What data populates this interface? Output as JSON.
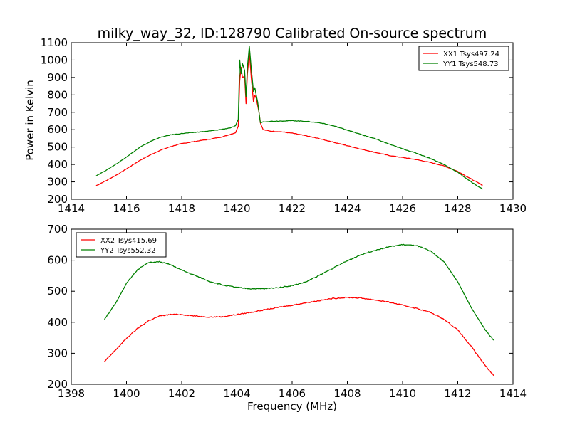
{
  "chart_data": [
    {
      "type": "line",
      "title": "milky_way_32, ID:128790 Calibrated On-source spectrum",
      "xlabel": "",
      "ylabel": "Power in Kelvin",
      "xlim": [
        1414,
        1430
      ],
      "ylim": [
        200,
        1100
      ],
      "x_ticks": [
        "1414",
        "1416",
        "1418",
        "1420",
        "1422",
        "1424",
        "1426",
        "1428",
        "1430"
      ],
      "y_ticks": [
        "200",
        "300",
        "400",
        "500",
        "600",
        "700",
        "800",
        "900",
        "1000",
        "1100"
      ],
      "grid": false,
      "legend_position": "top-right",
      "series": [
        {
          "name": "XX1 Tsys497.24",
          "color": "#ff0000",
          "points": [
            [
              1414.9,
              278
            ],
            [
              1415.3,
              310
            ],
            [
              1415.7,
              345
            ],
            [
              1416.1,
              385
            ],
            [
              1416.5,
              425
            ],
            [
              1416.9,
              458
            ],
            [
              1417.2,
              480
            ],
            [
              1417.6,
              503
            ],
            [
              1418.0,
              520
            ],
            [
              1418.5,
              533
            ],
            [
              1419.0,
              545
            ],
            [
              1419.5,
              560
            ],
            [
              1419.8,
              575
            ],
            [
              1419.95,
              583
            ],
            [
              1420.05,
              620
            ],
            [
              1420.1,
              880
            ],
            [
              1420.15,
              960
            ],
            [
              1420.2,
              900
            ],
            [
              1420.28,
              910
            ],
            [
              1420.33,
              750
            ],
            [
              1420.38,
              920
            ],
            [
              1420.45,
              1040
            ],
            [
              1420.52,
              900
            ],
            [
              1420.6,
              760
            ],
            [
              1420.65,
              800
            ],
            [
              1420.7,
              780
            ],
            [
              1420.75,
              740
            ],
            [
              1420.8,
              700
            ],
            [
              1420.85,
              640
            ],
            [
              1420.95,
              600
            ],
            [
              1421.2,
              592
            ],
            [
              1421.6,
              588
            ],
            [
              1422.0,
              580
            ],
            [
              1422.5,
              565
            ],
            [
              1423.0,
              548
            ],
            [
              1423.5,
              528
            ],
            [
              1424.0,
              508
            ],
            [
              1424.5,
              488
            ],
            [
              1425.0,
              470
            ],
            [
              1425.5,
              452
            ],
            [
              1426.0,
              440
            ],
            [
              1426.5,
              428
            ],
            [
              1427.0,
              412
            ],
            [
              1427.5,
              392
            ],
            [
              1428.0,
              360
            ],
            [
              1428.5,
              315
            ],
            [
              1428.9,
              280
            ]
          ]
        },
        {
          "name": "YY1 Tsys548.73",
          "color": "#008000",
          "points": [
            [
              1414.9,
              335
            ],
            [
              1415.3,
              370
            ],
            [
              1415.7,
              410
            ],
            [
              1416.1,
              455
            ],
            [
              1416.5,
              500
            ],
            [
              1416.9,
              535
            ],
            [
              1417.2,
              555
            ],
            [
              1417.6,
              570
            ],
            [
              1418.0,
              578
            ],
            [
              1418.5,
              585
            ],
            [
              1419.0,
              592
            ],
            [
              1419.5,
              603
            ],
            [
              1419.8,
              612
            ],
            [
              1419.95,
              622
            ],
            [
              1420.05,
              660
            ],
            [
              1420.1,
              1000
            ],
            [
              1420.15,
              920
            ],
            [
              1420.2,
              980
            ],
            [
              1420.28,
              940
            ],
            [
              1420.33,
              790
            ],
            [
              1420.38,
              960
            ],
            [
              1420.45,
              1080
            ],
            [
              1420.52,
              950
            ],
            [
              1420.6,
              820
            ],
            [
              1420.65,
              840
            ],
            [
              1420.7,
              800
            ],
            [
              1420.75,
              760
            ],
            [
              1420.8,
              700
            ],
            [
              1420.85,
              640
            ],
            [
              1420.95,
              645
            ],
            [
              1421.2,
              648
            ],
            [
              1421.6,
              650
            ],
            [
              1422.0,
              652
            ],
            [
              1422.5,
              648
            ],
            [
              1423.0,
              640
            ],
            [
              1423.5,
              622
            ],
            [
              1424.0,
              598
            ],
            [
              1424.5,
              572
            ],
            [
              1425.0,
              548
            ],
            [
              1425.5,
              518
            ],
            [
              1426.0,
              490
            ],
            [
              1426.5,
              465
            ],
            [
              1427.0,
              435
            ],
            [
              1427.5,
              400
            ],
            [
              1428.0,
              355
            ],
            [
              1428.5,
              298
            ],
            [
              1428.9,
              258
            ]
          ]
        }
      ]
    },
    {
      "type": "line",
      "title": "",
      "xlabel": "Frequency (MHz)",
      "ylabel": "",
      "xlim": [
        1398,
        1414
      ],
      "ylim": [
        200,
        700
      ],
      "x_ticks": [
        "1398",
        "1400",
        "1402",
        "1404",
        "1406",
        "1408",
        "1410",
        "1412",
        "1414"
      ],
      "y_ticks": [
        "200",
        "300",
        "400",
        "500",
        "600",
        "700"
      ],
      "grid": false,
      "legend_position": "top-left",
      "series": [
        {
          "name": "XX2 Tsys415.69",
          "color": "#ff0000",
          "points": [
            [
              1399.2,
              273
            ],
            [
              1399.6,
              310
            ],
            [
              1400.0,
              348
            ],
            [
              1400.4,
              380
            ],
            [
              1400.8,
              405
            ],
            [
              1401.2,
              420
            ],
            [
              1401.6,
              425
            ],
            [
              1402.0,
              425
            ],
            [
              1402.5,
              420
            ],
            [
              1403.0,
              417
            ],
            [
              1403.5,
              418
            ],
            [
              1404.0,
              425
            ],
            [
              1404.5,
              432
            ],
            [
              1405.0,
              440
            ],
            [
              1405.5,
              448
            ],
            [
              1406.0,
              455
            ],
            [
              1406.5,
              463
            ],
            [
              1407.0,
              470
            ],
            [
              1407.5,
              477
            ],
            [
              1408.0,
              480
            ],
            [
              1408.5,
              478
            ],
            [
              1409.0,
              472
            ],
            [
              1409.5,
              465
            ],
            [
              1410.0,
              455
            ],
            [
              1410.5,
              445
            ],
            [
              1411.0,
              432
            ],
            [
              1411.5,
              410
            ],
            [
              1412.0,
              375
            ],
            [
              1412.5,
              320
            ],
            [
              1413.0,
              260
            ],
            [
              1413.3,
              228
            ]
          ]
        },
        {
          "name": "YY2 Tsys552.32",
          "color": "#008000",
          "points": [
            [
              1399.2,
              410
            ],
            [
              1399.6,
              460
            ],
            [
              1400.0,
              525
            ],
            [
              1400.4,
              570
            ],
            [
              1400.8,
              592
            ],
            [
              1401.2,
              595
            ],
            [
              1401.6,
              585
            ],
            [
              1402.0,
              568
            ],
            [
              1402.5,
              550
            ],
            [
              1403.0,
              532
            ],
            [
              1403.5,
              520
            ],
            [
              1404.0,
              512
            ],
            [
              1404.5,
              508
            ],
            [
              1405.0,
              508
            ],
            [
              1405.5,
              512
            ],
            [
              1406.0,
              518
            ],
            [
              1406.5,
              530
            ],
            [
              1407.0,
              552
            ],
            [
              1407.5,
              575
            ],
            [
              1408.0,
              598
            ],
            [
              1408.5,
              618
            ],
            [
              1409.0,
              632
            ],
            [
              1409.5,
              643
            ],
            [
              1410.0,
              650
            ],
            [
              1410.5,
              647
            ],
            [
              1411.0,
              630
            ],
            [
              1411.5,
              595
            ],
            [
              1412.0,
              530
            ],
            [
              1412.5,
              445
            ],
            [
              1413.0,
              375
            ],
            [
              1413.3,
              342
            ]
          ]
        }
      ]
    }
  ]
}
